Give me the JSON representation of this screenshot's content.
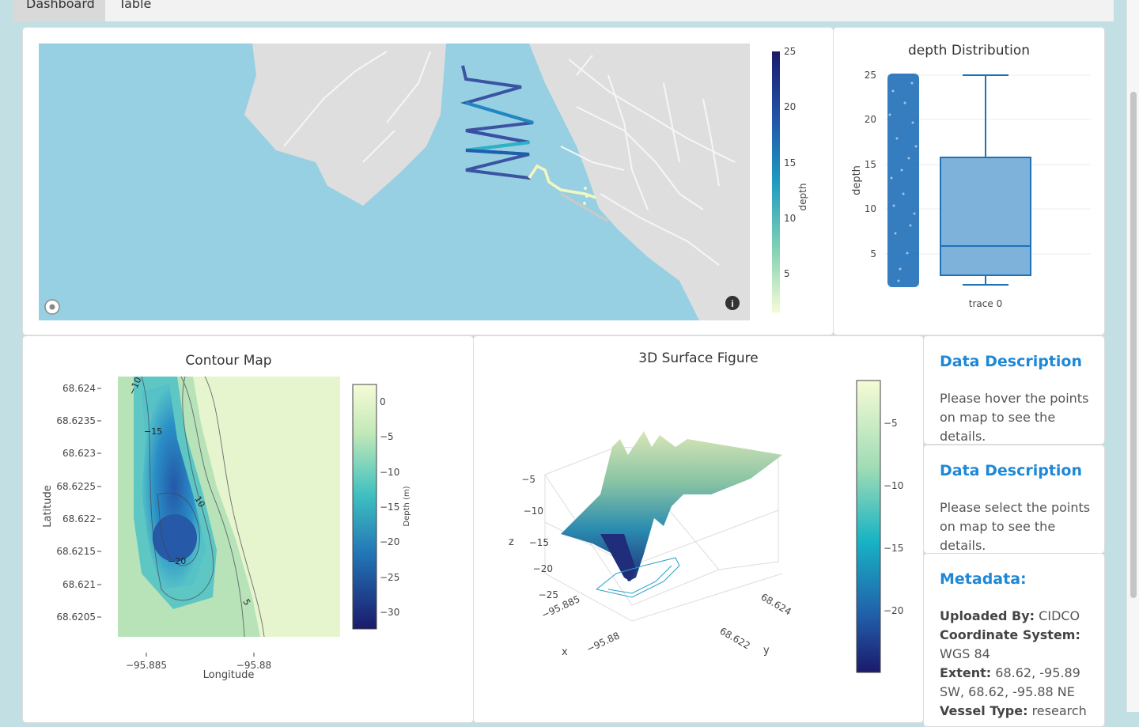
{
  "tabs": [
    {
      "label": "Dashboard",
      "active": true
    },
    {
      "label": "Table",
      "active": false
    }
  ],
  "map": {
    "colorbar_title": "depth",
    "colorbar_ticks": [
      "25",
      "20",
      "15",
      "10",
      "5"
    ]
  },
  "dist": {
    "title": "depth Distribution",
    "ylabel": "depth",
    "yticks": [
      "25",
      "20",
      "15",
      "10",
      "5"
    ],
    "xlabel": "trace 0"
  },
  "contour": {
    "title": "Contour Map",
    "ylabel": "Latitude",
    "xlabel": "Longitude",
    "yticks": [
      "68.624",
      "68.6235",
      "68.623",
      "68.6225",
      "68.622",
      "68.6215",
      "68.621",
      "68.6205"
    ],
    "xticks": [
      "−95.885",
      "−95.88"
    ],
    "colorbar_title": "Depth (m)",
    "colorbar_ticks": [
      "0",
      "−5",
      "−10",
      "−15",
      "−20",
      "−25",
      "−30"
    ],
    "contour_labels": [
      "−10",
      "−15",
      "10",
      "−20",
      "5"
    ]
  },
  "surface": {
    "title": "3D Surface Figure",
    "z_label": "z",
    "x_label": "x",
    "y_label": "y",
    "z_ticks": [
      "−5",
      "−10",
      "−15",
      "−20",
      "−25"
    ],
    "x_ticks": [
      "−95.885",
      "−95.88"
    ],
    "y_ticks": [
      "68.624",
      "68.622"
    ],
    "colorbar_ticks": [
      "−5",
      "−10",
      "−15",
      "−20"
    ]
  },
  "hover_desc": {
    "title": "Data Description",
    "text": "Please hover the points on map to see the details."
  },
  "select_desc": {
    "title": "Data Description",
    "text": "Please select the points on map to see the details."
  },
  "metadata": {
    "title": "Metadata:",
    "uploaded_by_label": "Uploaded By:",
    "uploaded_by": "CIDCO",
    "coord_label": "Coordinate System:",
    "coord": "WGS 84",
    "extent_label": "Extent:",
    "extent": "68.62, -95.89 SW, 68.62, -95.88 NE",
    "vessel_label": "Vessel Type:",
    "vessel": "research"
  }
}
